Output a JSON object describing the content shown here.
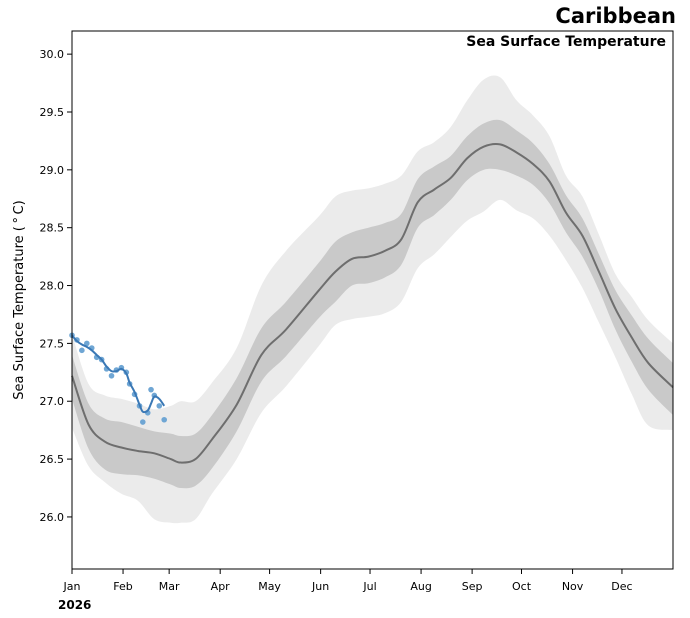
{
  "chart_data": {
    "type": "line",
    "title": "Caribbean",
    "subtitle": "Sea Surface Temperature",
    "ylabel": "Sea Surface Temperature ($^\\circ$C)",
    "ylabel_display": "Sea Surface Temperature ( ° C)",
    "year_label": "2026",
    "xlim": [
      0,
      365
    ],
    "ylim": [
      25.55,
      30.2
    ],
    "yticks": [
      26.0,
      26.5,
      27.0,
      27.5,
      28.0,
      28.5,
      29.0,
      29.5,
      30.0
    ],
    "ytick_labels": [
      "26.0",
      "26.5",
      "27.0",
      "27.5",
      "28.0",
      "28.5",
      "29.0",
      "29.5",
      "30.0"
    ],
    "xticks": [
      {
        "day": 0,
        "label": "Jan"
      },
      {
        "day": 31,
        "label": "Feb"
      },
      {
        "day": 59,
        "label": "Mar"
      },
      {
        "day": 90,
        "label": "Apr"
      },
      {
        "day": 120,
        "label": "May"
      },
      {
        "day": 151,
        "label": "Jun"
      },
      {
        "day": 181,
        "label": "Jul"
      },
      {
        "day": 212,
        "label": "Aug"
      },
      {
        "day": 243,
        "label": "Sep"
      },
      {
        "day": 273,
        "label": "Oct"
      },
      {
        "day": 304,
        "label": "Nov"
      },
      {
        "day": 334,
        "label": "Dec"
      }
    ],
    "climatology": {
      "day": [
        0,
        10,
        20,
        30,
        40,
        50,
        60,
        66,
        75,
        85,
        100,
        115,
        130,
        150,
        160,
        170,
        180,
        190,
        200,
        210,
        220,
        230,
        240,
        250,
        260,
        270,
        280,
        290,
        300,
        310,
        320,
        330,
        340,
        350,
        365
      ],
      "mean": [
        27.22,
        26.8,
        26.65,
        26.6,
        26.57,
        26.55,
        26.5,
        26.47,
        26.5,
        26.67,
        26.97,
        27.4,
        27.62,
        27.96,
        28.12,
        28.23,
        28.25,
        28.3,
        28.4,
        28.72,
        28.83,
        28.93,
        29.1,
        29.2,
        29.22,
        29.15,
        29.05,
        28.9,
        28.63,
        28.43,
        28.12,
        27.8,
        27.55,
        27.33,
        27.12
      ],
      "inner_upper": [
        27.4,
        26.98,
        26.85,
        26.82,
        26.78,
        26.74,
        26.72,
        26.7,
        26.72,
        26.88,
        27.2,
        27.63,
        27.86,
        28.2,
        28.38,
        28.46,
        28.5,
        28.54,
        28.62,
        28.92,
        29.03,
        29.12,
        29.29,
        29.4,
        29.43,
        29.34,
        29.23,
        29.05,
        28.78,
        28.58,
        28.27,
        27.96,
        27.74,
        27.54,
        27.33
      ],
      "inner_lower": [
        27.02,
        26.59,
        26.41,
        26.37,
        26.36,
        26.33,
        26.28,
        26.25,
        26.27,
        26.42,
        26.74,
        27.17,
        27.39,
        27.72,
        27.86,
        28.0,
        28.02,
        28.07,
        28.18,
        28.5,
        28.61,
        28.74,
        28.91,
        29.0,
        29.0,
        28.95,
        28.87,
        28.71,
        28.46,
        28.25,
        27.96,
        27.62,
        27.34,
        27.1,
        26.88
      ],
      "outer_upper": [
        27.58,
        27.15,
        27.05,
        27.02,
        26.98,
        26.93,
        26.96,
        27.0,
        27.0,
        27.16,
        27.46,
        28.0,
        28.3,
        28.6,
        28.77,
        28.82,
        28.84,
        28.88,
        28.95,
        29.16,
        29.24,
        29.37,
        29.6,
        29.78,
        29.8,
        29.6,
        29.47,
        29.29,
        28.95,
        28.77,
        28.44,
        28.1,
        27.9,
        27.7,
        27.5
      ],
      "outer_lower": [
        26.77,
        26.44,
        26.3,
        26.2,
        26.14,
        25.98,
        25.95,
        25.95,
        25.98,
        26.2,
        26.5,
        26.9,
        27.13,
        27.48,
        27.66,
        27.71,
        27.73,
        27.76,
        27.86,
        28.15,
        28.27,
        28.42,
        28.56,
        28.64,
        28.74,
        28.65,
        28.58,
        28.43,
        28.22,
        27.98,
        27.68,
        27.38,
        27.06,
        26.79,
        26.75
      ]
    },
    "observed": {
      "name": "2026",
      "day": [
        0,
        3,
        6,
        9,
        12,
        15,
        18,
        21,
        24,
        27,
        30,
        33,
        35,
        38,
        41,
        43,
        46,
        48,
        50,
        53,
        56
      ],
      "smooth": [
        27.57,
        27.52,
        27.49,
        27.47,
        27.44,
        27.4,
        27.36,
        27.3,
        27.26,
        27.26,
        27.28,
        27.24,
        27.16,
        27.08,
        26.97,
        26.91,
        26.92,
        26.98,
        27.04,
        27.02,
        26.96
      ],
      "points": [
        27.57,
        27.53,
        27.44,
        27.5,
        27.46,
        27.38,
        27.36,
        27.28,
        27.22,
        27.27,
        27.29,
        27.25,
        27.15,
        27.06,
        26.96,
        26.82,
        26.9,
        27.1,
        27.05,
        26.96,
        26.84
      ]
    },
    "colors": {
      "outer_band": "#ebebeb",
      "inner_band": "#c9c9c9",
      "mean_line": "#6e6e6e",
      "observed_line": "#3a78b5",
      "observed_points": "#6fa6d4"
    }
  }
}
